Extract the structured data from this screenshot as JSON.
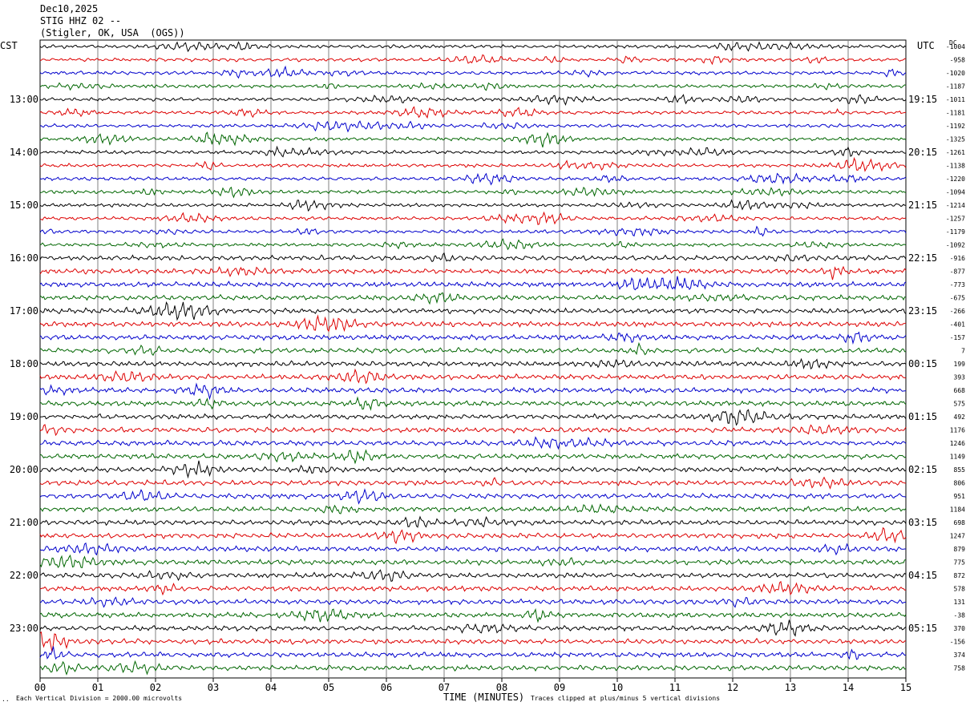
{
  "header": {
    "date": "Dec10,2025",
    "station": "STIG HHZ 02 --",
    "location": "(Stigler, OK, USA  (OGS))"
  },
  "left_zone": "CST",
  "right_zone": "UTC",
  "dc_label": "DC",
  "footer": {
    "corner": "..",
    "scale_note": "Each Vertical Division = 2000.00 microvolts",
    "xlabel": "TIME (MINUTES)",
    "clip_note": "Traces clipped at plus/minus 5 vertical divisions"
  },
  "chart_data": {
    "type": "line",
    "title": "",
    "xlabel": "TIME (MINUTES)",
    "ylabel": "",
    "xlim": [
      0,
      15
    ],
    "x_ticks": [
      "00",
      "01",
      "02",
      "03",
      "04",
      "05",
      "06",
      "07",
      "08",
      "09",
      "10",
      "11",
      "12",
      "13",
      "14",
      "15"
    ],
    "grid": true,
    "trace_colors": [
      "#000000",
      "#dd0000",
      "#0000cc",
      "#006600"
    ],
    "left_hour_labels": [
      "13:00",
      "14:00",
      "15:00",
      "16:00",
      "17:00",
      "18:00",
      "19:00",
      "20:00",
      "21:00",
      "22:00",
      "23:00"
    ],
    "right_hour_labels": [
      "19:15",
      "20:15",
      "21:15",
      "22:15",
      "23:15",
      "00:15",
      "01:15",
      "02:15",
      "03:15",
      "04:15",
      "05:15"
    ],
    "dc_offsets": [
      "-1004",
      "-958",
      "-1020",
      "-1187",
      "-1011",
      "-1181",
      "-1192",
      "-1325",
      "-1261",
      "-1138",
      "-1220",
      "-1094",
      "-1214",
      "-1257",
      "-1179",
      "-1092",
      "-916",
      "-877",
      "-773",
      "-675",
      "-266",
      "-401",
      "-157",
      "7",
      "199",
      "393",
      "668",
      "575",
      "492",
      "1176",
      "1246",
      "1149",
      "855",
      "806",
      "951",
      "1184",
      "698",
      "1247",
      "879",
      "775",
      "872",
      "578",
      "131",
      "-38",
      "370",
      "-156",
      "374",
      "758"
    ]
  }
}
